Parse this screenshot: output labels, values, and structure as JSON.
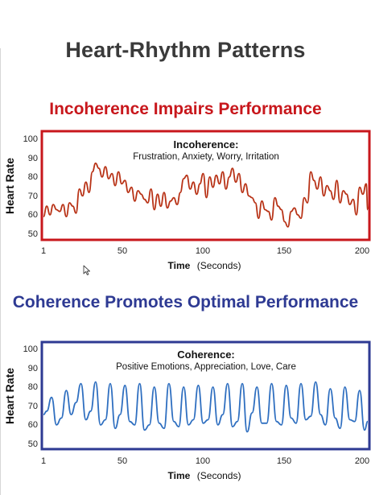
{
  "page_title": "Heart-Rhythm Patterns",
  "chart_data": [
    {
      "type": "line",
      "title": "Incoherence Impairs Performance",
      "inner_title": "Incoherence:",
      "inner_subtitle": "Frustration, Anxiety, Worry, Irritation",
      "xlabel": "Time",
      "xlabel_unit": "(Seconds)",
      "ylabel": "Heart Rate",
      "xlim": [
        1,
        200
      ],
      "ylim": [
        45,
        103
      ],
      "xticks": [
        "1",
        "50",
        "100",
        "150",
        "200"
      ],
      "yticks": [
        "100",
        "90",
        "80",
        "70",
        "60",
        "50"
      ],
      "title_color": "#c8171c",
      "frame_color": "#c8171c",
      "line_color": "#b83216",
      "series": [
        {
          "x": [
            1,
            3,
            5,
            7,
            9,
            11,
            13,
            15,
            17,
            19,
            21,
            23,
            25,
            27,
            29,
            31,
            33,
            35,
            37,
            39,
            41,
            43,
            45,
            47,
            49,
            51,
            53,
            55,
            57,
            59,
            61,
            63,
            65,
            67,
            69,
            71,
            73,
            75,
            77,
            79,
            81,
            83,
            85,
            87,
            89,
            91,
            93,
            95,
            97,
            99,
            101,
            103,
            105,
            107,
            109,
            111,
            113,
            115,
            117,
            119,
            121,
            123,
            125,
            127,
            129,
            131,
            133,
            135,
            137,
            139,
            141,
            143,
            145,
            147,
            149,
            151,
            153,
            155,
            157,
            159,
            161,
            163,
            165,
            167,
            169,
            171,
            173,
            175,
            177,
            179,
            181,
            183,
            185,
            187,
            189,
            191,
            193,
            195,
            197,
            199,
            200
          ],
          "values": [
            59,
            65,
            60,
            66,
            63,
            62,
            66,
            59,
            67,
            65,
            61,
            75,
            71,
            79,
            73,
            85,
            90,
            87,
            82,
            88,
            81,
            84,
            77,
            85,
            78,
            80,
            73,
            76,
            68,
            74,
            72,
            69,
            67,
            75,
            63,
            72,
            65,
            73,
            64,
            68,
            70,
            66,
            73,
            81,
            83,
            75,
            79,
            72,
            78,
            84,
            70,
            82,
            76,
            83,
            78,
            85,
            75,
            82,
            87,
            79,
            84,
            73,
            78,
            71,
            70,
            67,
            58,
            68,
            63,
            62,
            57,
            70,
            65,
            63,
            56,
            53,
            62,
            64,
            60,
            58,
            70,
            67,
            85,
            80,
            75,
            82,
            71,
            77,
            74,
            69,
            80,
            67,
            74,
            72,
            66,
            69,
            60,
            76,
            72,
            78,
            63
          ]
        }
      ]
    },
    {
      "type": "line",
      "title": "Coherence Promotes Optimal Performance",
      "inner_title": "Coherence:",
      "inner_subtitle": "Positive Emotions, Appreciation, Love, Care",
      "xlabel": "Time",
      "xlabel_unit": "(Seconds)",
      "ylabel": "Heart Rate",
      "xlim": [
        1,
        200
      ],
      "ylim": [
        45,
        103
      ],
      "xticks": [
        "1",
        "50",
        "100",
        "150",
        "200"
      ],
      "yticks": [
        "100",
        "90",
        "80",
        "70",
        "60",
        "50"
      ],
      "title_color": "#2e3a93",
      "frame_color": "#2e3a93",
      "line_color": "#2f6fc0",
      "series": [
        {
          "x": [
            1,
            3,
            6,
            9,
            12,
            15,
            18,
            21,
            24,
            27,
            30,
            33,
            36,
            39,
            42,
            45,
            48,
            51,
            54,
            57,
            60,
            63,
            66,
            69,
            72,
            75,
            78,
            81,
            84,
            87,
            90,
            93,
            96,
            99,
            102,
            105,
            108,
            111,
            114,
            117,
            120,
            123,
            126,
            129,
            132,
            135,
            138,
            141,
            144,
            147,
            150,
            153,
            156,
            159,
            162,
            165,
            168,
            171,
            174,
            177,
            180,
            183,
            186,
            189,
            192,
            195,
            198,
            200
          ],
          "values": [
            66,
            68,
            76,
            60,
            64,
            80,
            66,
            73,
            84,
            63,
            68,
            85,
            60,
            63,
            84,
            58,
            66,
            83,
            62,
            60,
            84,
            57,
            60,
            82,
            61,
            58,
            84,
            62,
            59,
            82,
            60,
            63,
            83,
            61,
            63,
            82,
            60,
            66,
            84,
            59,
            62,
            84,
            56,
            67,
            82,
            61,
            61,
            84,
            62,
            60,
            83,
            64,
            61,
            84,
            63,
            65,
            85,
            66,
            60,
            81,
            64,
            58,
            82,
            63,
            62,
            80,
            57,
            62
          ]
        }
      ]
    }
  ]
}
